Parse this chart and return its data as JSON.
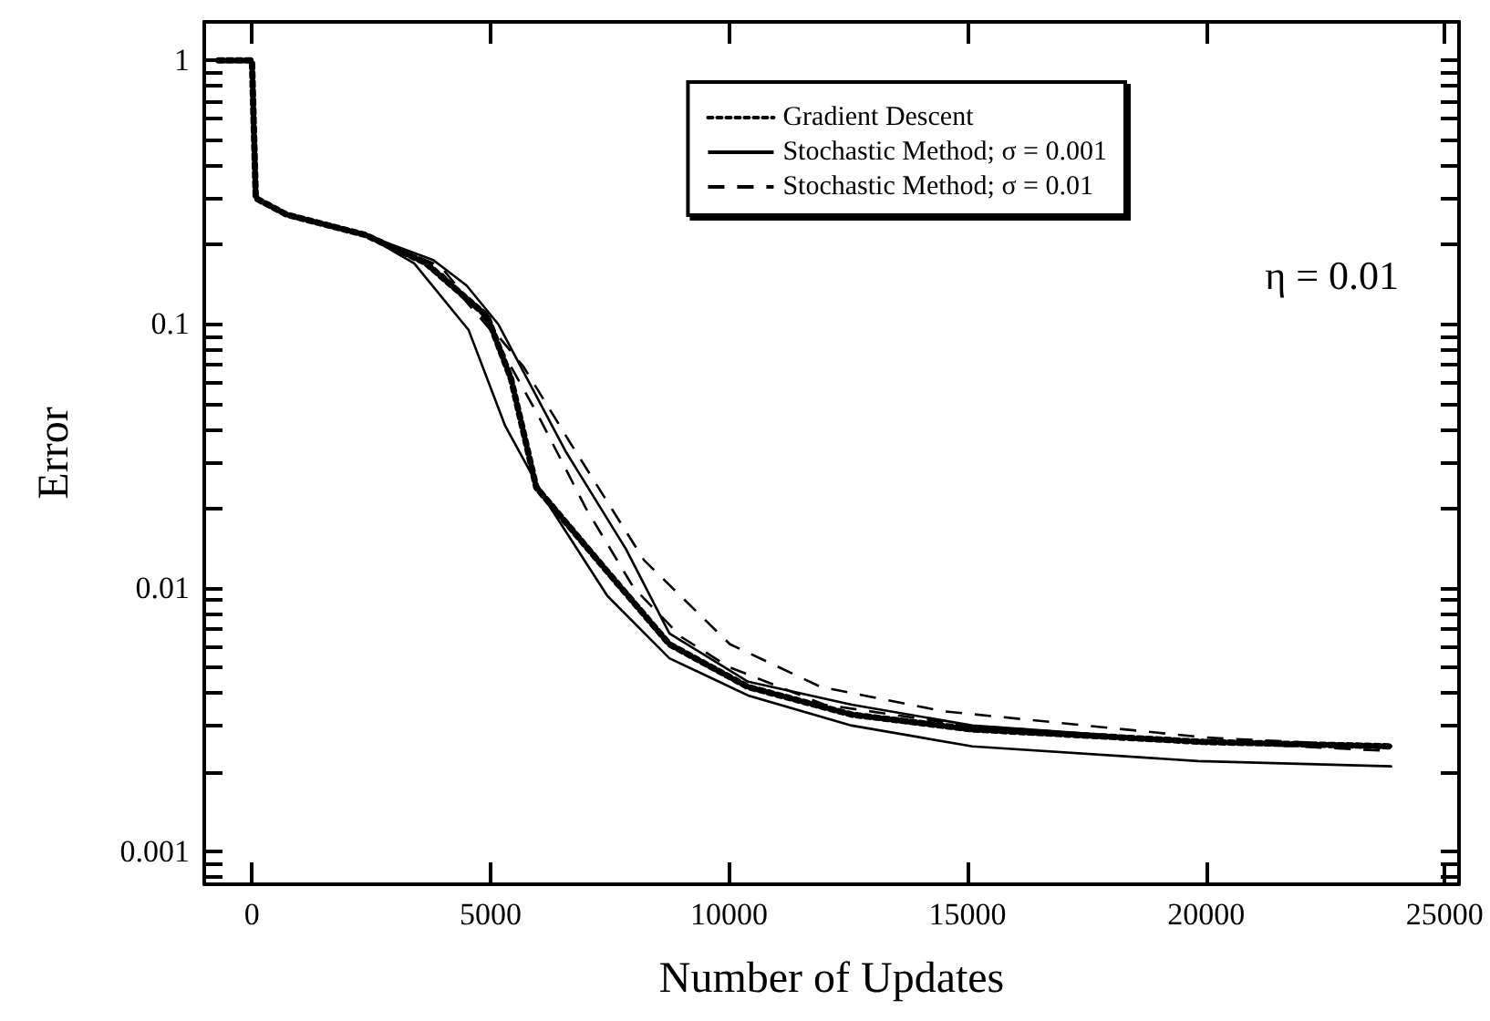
{
  "chart_data": {
    "type": "line",
    "xlabel": "Number of Updates",
    "ylabel": "Error",
    "annotations": [
      "η = 0.01"
    ],
    "log": "y",
    "grid": false,
    "legend": "top right",
    "marker": "none",
    "xlim": [
      -1000,
      25300
    ],
    "xticks": [
      0,
      5000,
      10000,
      15000,
      20000,
      25000
    ],
    "ylim": [
      0.00075,
      1.4
    ],
    "yticks": [
      {
        "value": 0.0008,
        "label": null
      },
      {
        "value": 0.0009,
        "label": null
      },
      {
        "value": 0.001,
        "label": "0.001"
      },
      {
        "value": 0.002,
        "label": null
      },
      {
        "value": 0.003,
        "label": null
      },
      {
        "value": 0.004,
        "label": null
      },
      {
        "value": 0.005,
        "label": null
      },
      {
        "value": 0.006,
        "label": null
      },
      {
        "value": 0.007,
        "label": null
      },
      {
        "value": 0.008,
        "label": null
      },
      {
        "value": 0.009,
        "label": null
      },
      {
        "value": 0.01,
        "label": "0.01"
      },
      {
        "value": 0.02,
        "label": null
      },
      {
        "value": 0.03,
        "label": null
      },
      {
        "value": 0.04,
        "label": null
      },
      {
        "value": 0.05,
        "label": null
      },
      {
        "value": 0.06,
        "label": null
      },
      {
        "value": 0.07,
        "label": null
      },
      {
        "value": 0.08,
        "label": null
      },
      {
        "value": 0.09,
        "label": null
      },
      {
        "value": 0.1,
        "label": "0.1"
      },
      {
        "value": 0.2,
        "label": null
      },
      {
        "value": 0.3,
        "label": null
      },
      {
        "value": 0.4,
        "label": null
      },
      {
        "value": 0.5,
        "label": null
      },
      {
        "value": 0.6,
        "label": null
      },
      {
        "value": 0.7,
        "label": null
      },
      {
        "value": 0.8,
        "label": null
      },
      {
        "value": 0.9,
        "label": null
      },
      {
        "value": 1,
        "label": "1"
      }
    ],
    "series": [
      {
        "name": "Gradient Descent",
        "color": "#000000",
        "line_style": "dotted",
        "x": [
          -700,
          0,
          80,
          730,
          2370,
          3630,
          4930,
          5430,
          5960,
          7450,
          8750,
          10400,
          12570,
          15100,
          19950,
          23900
        ],
        "values": [
          1,
          1,
          0.3,
          0.26,
          0.218,
          0.171,
          0.107,
          0.062,
          0.024,
          0.0115,
          0.0061,
          0.0042,
          0.0033,
          0.0029,
          0.0026,
          0.0025
        ]
      },
      {
        "name": "Stochastic Method; σ = 0.001",
        "color": "#000000",
        "line_style": "solid",
        "x": [
          0,
          80,
          730,
          2370,
          3400,
          4540,
          5310,
          6190,
          7450,
          8750,
          10400,
          12570,
          15100,
          19830,
          23900
        ],
        "values": [
          1,
          0.3,
          0.26,
          0.218,
          0.17,
          0.095,
          0.041,
          0.021,
          0.0093,
          0.0054,
          0.0039,
          0.003,
          0.0025,
          0.0022,
          0.0021
        ]
      },
      {
        "color": "#000000",
        "line_style": "solid",
        "x": [
          0,
          80,
          730,
          2370,
          3800,
          4500,
          5160,
          6570,
          7840,
          8750,
          10400,
          12570,
          15100,
          20000,
          23900
        ],
        "values": [
          1,
          0.3,
          0.26,
          0.218,
          0.175,
          0.14,
          0.1,
          0.033,
          0.014,
          0.0067,
          0.0044,
          0.0036,
          0.003,
          0.0026,
          0.0025
        ]
      },
      {
        "name": "Stochastic Method; σ = 0.01",
        "color": "#000000",
        "line_style": "dashed",
        "x": [
          2370,
          3800,
          5000,
          6000,
          7000,
          8000,
          9000,
          10000,
          12000,
          15000,
          20000,
          23900
        ],
        "values": [
          0.218,
          0.17,
          0.095,
          0.045,
          0.02,
          0.01,
          0.0065,
          0.005,
          0.0036,
          0.003,
          0.0026,
          0.0024
        ]
      },
      {
        "color": "#000000",
        "line_style": "dashed",
        "x": [
          2370,
          4020,
          5690,
          6690,
          8220,
          10020,
          11930,
          14490,
          20000,
          23900
        ],
        "values": [
          0.22,
          0.16,
          0.069,
          0.035,
          0.0127,
          0.0061,
          0.0042,
          0.0034,
          0.0027,
          0.0025
        ]
      }
    ]
  }
}
